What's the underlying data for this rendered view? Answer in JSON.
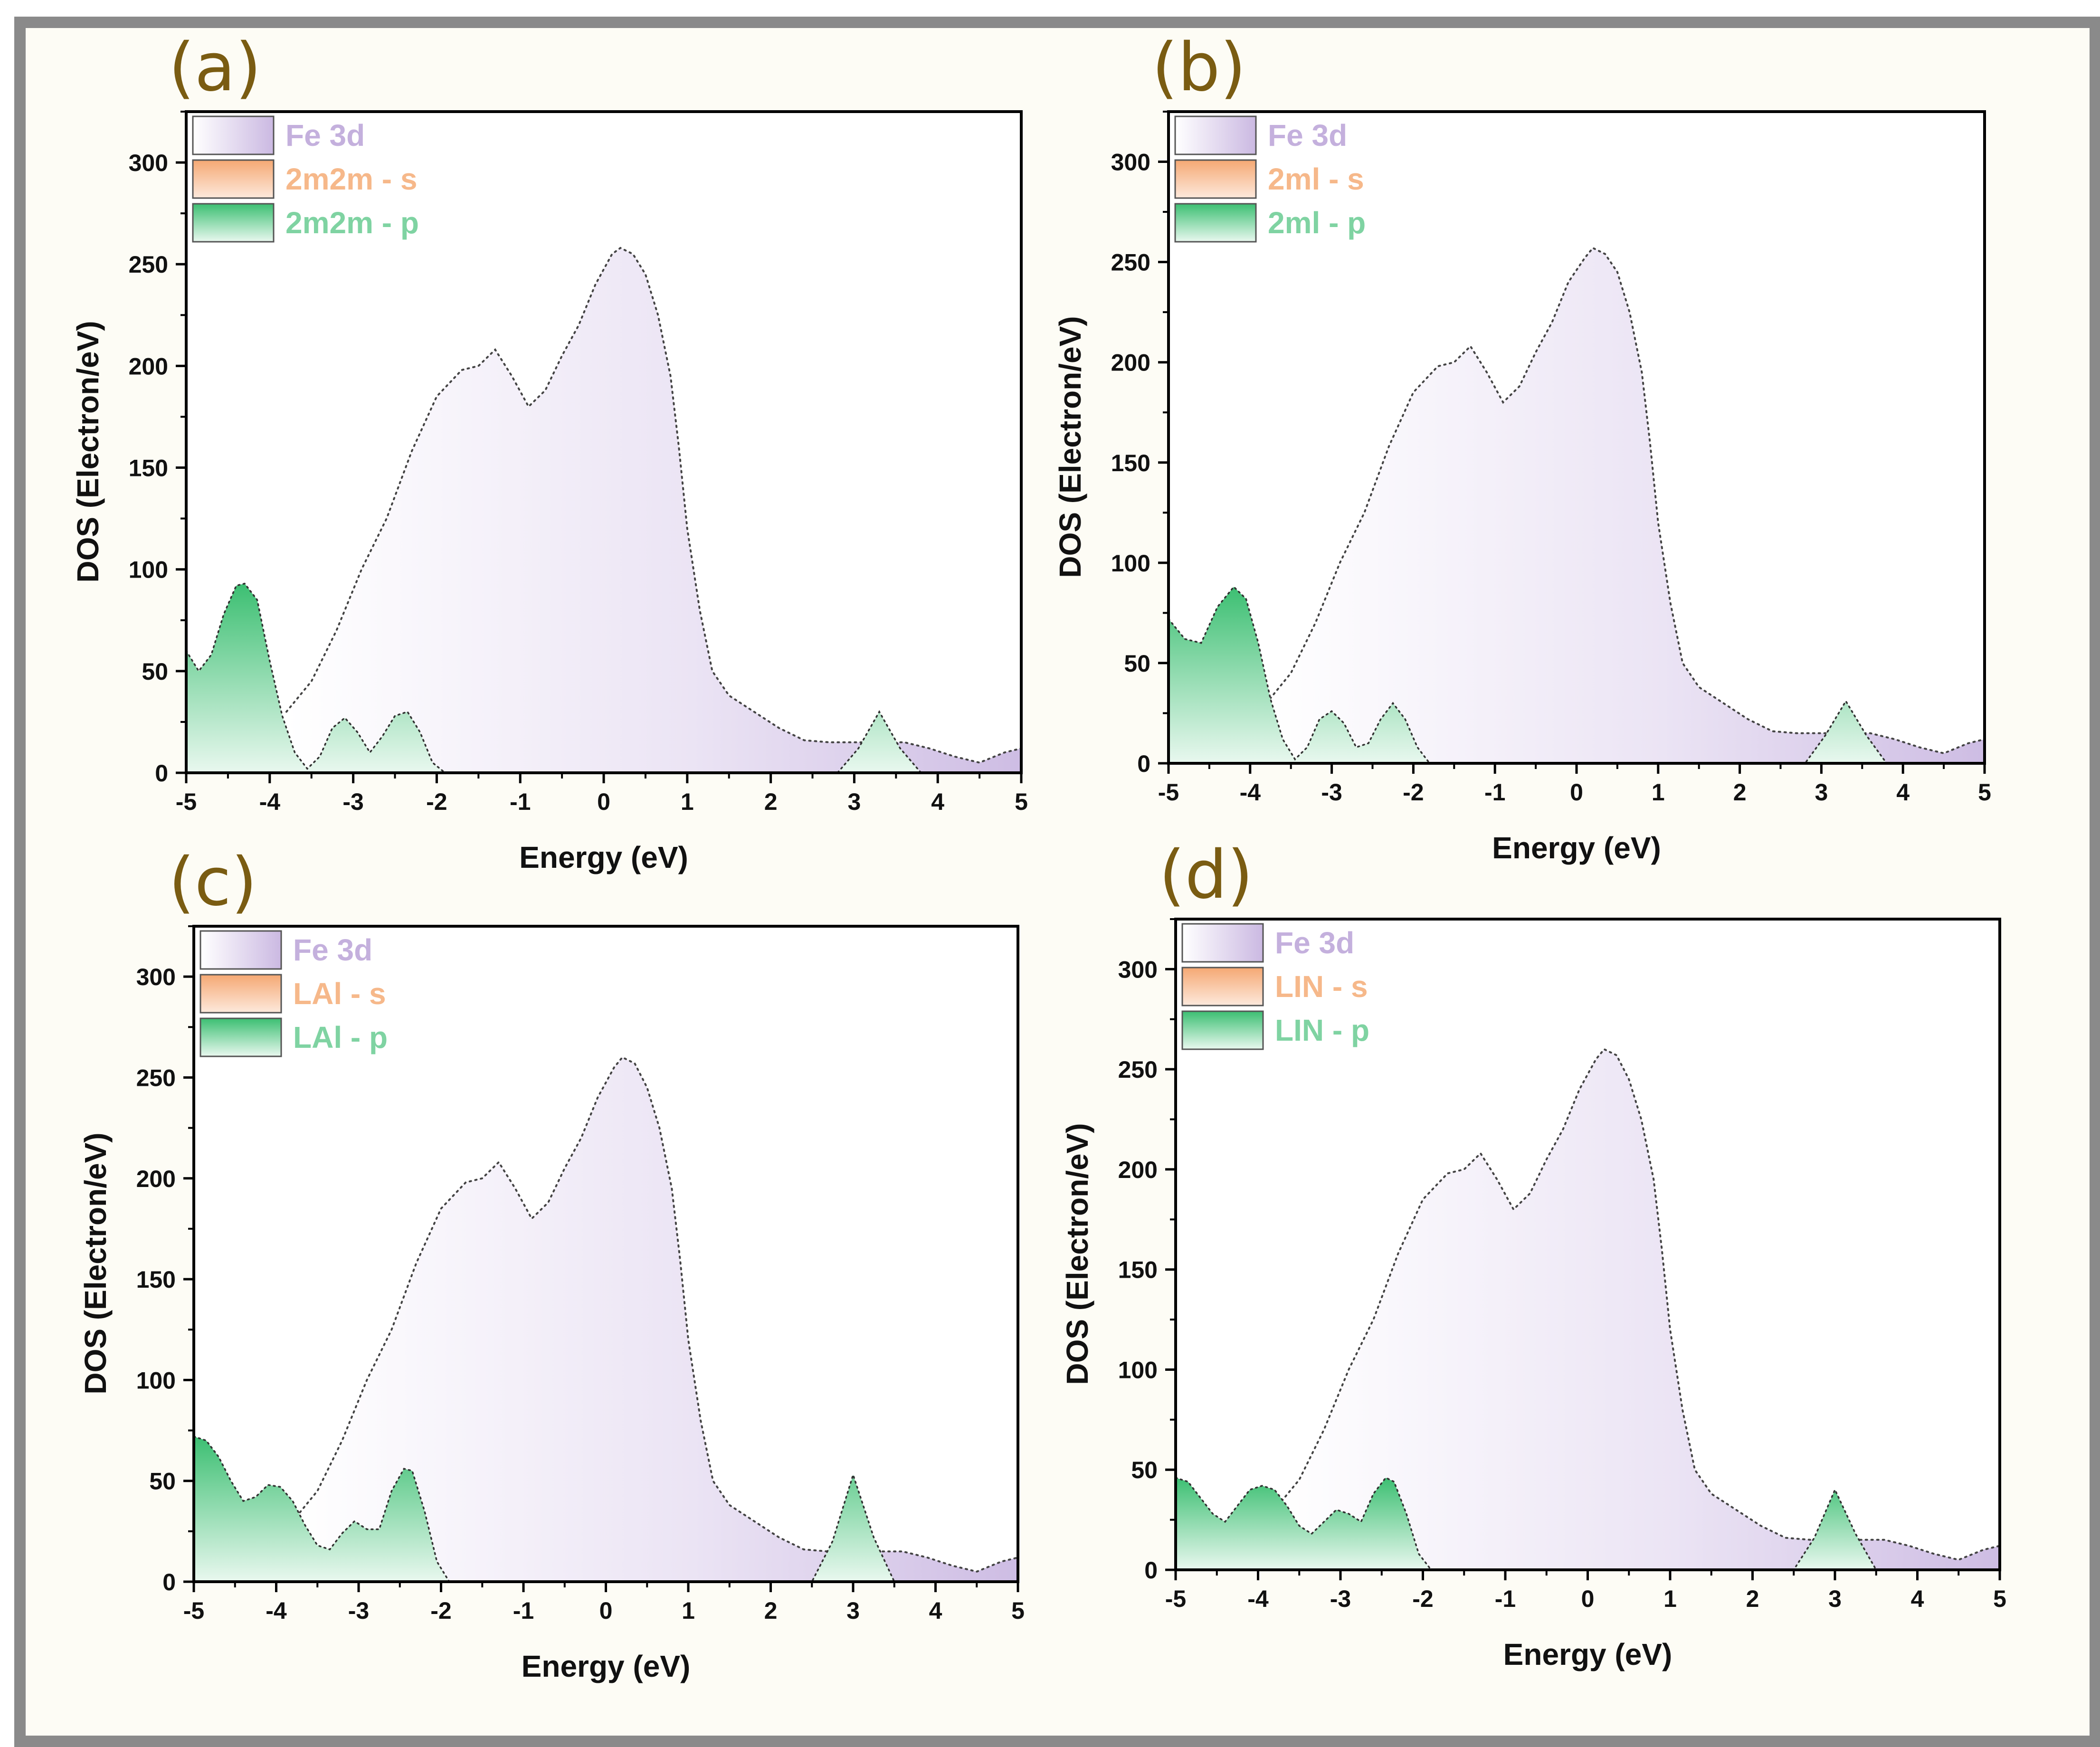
{
  "colors": {
    "fe3d": "#c5b3de",
    "s": "#f7b98a",
    "p": "#49c57c",
    "legend_fe": "#c4b0dd",
    "legend_s": "#f6b88a",
    "legend_p": "#7fd3a2",
    "panel_label": "#7a5c12"
  },
  "chart_data": [
    {
      "panel": "(a)",
      "type": "area",
      "xlabel": "Energy (eV)",
      "ylabel": "DOS (Electron/eV)",
      "xlim": [
        -5,
        5
      ],
      "ylim": [
        0,
        325
      ],
      "xticks": [
        -5,
        -4,
        -3,
        -2,
        -1,
        0,
        1,
        2,
        3,
        4,
        5
      ],
      "yticks": [
        0,
        50,
        100,
        150,
        200,
        250,
        300
      ],
      "legend": [
        "Fe 3d",
        "2m2m - s",
        "2m2m - p"
      ],
      "series": [
        {
          "name": "Fe 3d",
          "x": [
            -3.8,
            -3.5,
            -3.2,
            -2.9,
            -2.6,
            -2.3,
            -2.0,
            -1.7,
            -1.5,
            -1.3,
            -1.1,
            -0.9,
            -0.7,
            -0.5,
            -0.3,
            -0.1,
            0.1,
            0.2,
            0.35,
            0.5,
            0.65,
            0.8,
            0.9,
            1.0,
            1.15,
            1.3,
            1.5,
            1.8,
            2.1,
            2.4,
            2.7,
            3.0,
            3.3,
            3.6,
            3.9,
            4.2,
            4.5,
            4.8,
            5.0
          ],
          "y": [
            30,
            45,
            70,
            100,
            125,
            158,
            185,
            198,
            200,
            208,
            195,
            180,
            188,
            205,
            220,
            240,
            255,
            258,
            255,
            245,
            225,
            195,
            160,
            120,
            80,
            50,
            38,
            30,
            22,
            16,
            15,
            15,
            15,
            15,
            12,
            8,
            5,
            10,
            12
          ]
        },
        {
          "name": "2m2m - s",
          "x": [
            -5,
            5
          ],
          "y": [
            0,
            0
          ]
        },
        {
          "name": "2m2m - p",
          "x": [
            -5,
            -4.85,
            -4.7,
            -4.55,
            -4.4,
            -4.3,
            -4.15,
            -4.0,
            -3.85,
            -3.7,
            -3.55,
            -3.4,
            -3.25,
            -3.1,
            -2.95,
            -2.8,
            -2.65,
            -2.5,
            -2.35,
            -2.2,
            -2.05,
            -1.9,
            2.8,
            3.05,
            3.3,
            3.55,
            3.8
          ],
          "y": [
            60,
            50,
            58,
            78,
            92,
            93,
            85,
            55,
            28,
            10,
            2,
            8,
            22,
            27,
            20,
            10,
            18,
            28,
            30,
            20,
            5,
            0,
            0,
            12,
            30,
            12,
            0
          ]
        }
      ]
    },
    {
      "panel": "(b)",
      "type": "area",
      "xlabel": "Energy (eV)",
      "ylabel": "DOS (Electron/eV)",
      "xlim": [
        -5,
        5
      ],
      "ylim": [
        0,
        325
      ],
      "xticks": [
        -5,
        -4,
        -3,
        -2,
        -1,
        0,
        1,
        2,
        3,
        4,
        5
      ],
      "yticks": [
        0,
        50,
        100,
        150,
        200,
        250,
        300
      ],
      "legend": [
        "Fe 3d",
        "2ml - s",
        "2ml - p"
      ],
      "series": [
        {
          "name": "Fe 3d",
          "x": [
            -3.8,
            -3.5,
            -3.2,
            -2.9,
            -2.6,
            -2.3,
            -2.0,
            -1.7,
            -1.5,
            -1.3,
            -1.1,
            -0.9,
            -0.7,
            -0.5,
            -0.3,
            -0.1,
            0.1,
            0.2,
            0.35,
            0.5,
            0.65,
            0.8,
            0.9,
            1.0,
            1.15,
            1.3,
            1.5,
            1.8,
            2.1,
            2.4,
            2.7,
            3.0,
            3.3,
            3.6,
            3.9,
            4.2,
            4.5,
            4.8,
            5.0
          ],
          "y": [
            30,
            45,
            70,
            100,
            125,
            158,
            185,
            198,
            200,
            208,
            195,
            180,
            188,
            205,
            220,
            240,
            252,
            257,
            254,
            245,
            225,
            195,
            160,
            120,
            80,
            50,
            38,
            30,
            22,
            16,
            15,
            15,
            15,
            15,
            12,
            8,
            5,
            10,
            12
          ]
        },
        {
          "name": "2ml - s",
          "x": [
            -5,
            5
          ],
          "y": [
            0,
            0
          ]
        },
        {
          "name": "2ml - p",
          "x": [
            -5,
            -4.8,
            -4.6,
            -4.4,
            -4.2,
            -4.05,
            -3.9,
            -3.75,
            -3.6,
            -3.45,
            -3.3,
            -3.15,
            -3.0,
            -2.85,
            -2.7,
            -2.55,
            -2.4,
            -2.25,
            -2.1,
            -1.95,
            -1.8,
            2.8,
            3.05,
            3.3,
            3.55,
            3.8
          ],
          "y": [
            72,
            62,
            60,
            78,
            88,
            82,
            60,
            32,
            12,
            2,
            8,
            22,
            26,
            20,
            8,
            10,
            22,
            30,
            22,
            8,
            0,
            0,
            14,
            31,
            14,
            0
          ]
        }
      ]
    },
    {
      "panel": "(c)",
      "type": "area",
      "xlabel": "Energy (eV)",
      "ylabel": "DOS (Electron/eV)",
      "xlim": [
        -5,
        5
      ],
      "ylim": [
        0,
        325
      ],
      "xticks": [
        -5,
        -4,
        -3,
        -2,
        -1,
        0,
        1,
        2,
        3,
        4,
        5
      ],
      "yticks": [
        0,
        50,
        100,
        150,
        200,
        250,
        300
      ],
      "legend": [
        "Fe 3d",
        "LAl - s",
        "LAl - p"
      ],
      "series": [
        {
          "name": "Fe 3d",
          "x": [
            -3.8,
            -3.5,
            -3.2,
            -2.9,
            -2.6,
            -2.3,
            -2.0,
            -1.7,
            -1.5,
            -1.3,
            -1.1,
            -0.9,
            -0.7,
            -0.5,
            -0.3,
            -0.1,
            0.1,
            0.2,
            0.35,
            0.5,
            0.65,
            0.8,
            0.9,
            1.0,
            1.15,
            1.3,
            1.5,
            1.8,
            2.1,
            2.4,
            2.7,
            3.0,
            3.3,
            3.6,
            3.9,
            4.2,
            4.5,
            4.8,
            5.0
          ],
          "y": [
            30,
            45,
            70,
            100,
            125,
            158,
            185,
            198,
            200,
            208,
            195,
            180,
            188,
            205,
            220,
            240,
            255,
            260,
            257,
            245,
            225,
            195,
            160,
            120,
            80,
            50,
            38,
            30,
            22,
            16,
            15,
            15,
            15,
            15,
            12,
            8,
            5,
            10,
            12
          ]
        },
        {
          "name": "LAl - s",
          "x": [
            -5,
            5
          ],
          "y": [
            0,
            0
          ]
        },
        {
          "name": "LAl - p",
          "x": [
            -5,
            -4.85,
            -4.7,
            -4.55,
            -4.4,
            -4.25,
            -4.1,
            -3.95,
            -3.8,
            -3.65,
            -3.5,
            -3.35,
            -3.2,
            -3.05,
            -2.9,
            -2.75,
            -2.6,
            -2.45,
            -2.35,
            -2.2,
            -2.05,
            -1.9,
            2.5,
            2.75,
            3.0,
            3.25,
            3.5
          ],
          "y": [
            72,
            70,
            62,
            50,
            40,
            42,
            48,
            47,
            40,
            28,
            18,
            16,
            24,
            30,
            26,
            26,
            45,
            56,
            55,
            35,
            10,
            0,
            0,
            20,
            53,
            22,
            0
          ]
        }
      ]
    },
    {
      "panel": "(d)",
      "type": "area",
      "xlabel": "Energy (eV)",
      "ylabel": "DOS (Electron/eV)",
      "xlim": [
        -5,
        5
      ],
      "ylim": [
        0,
        325
      ],
      "xticks": [
        -5,
        -4,
        -3,
        -2,
        -1,
        0,
        1,
        2,
        3,
        4,
        5
      ],
      "yticks": [
        0,
        50,
        100,
        150,
        200,
        250,
        300
      ],
      "legend": [
        "Fe 3d",
        "LIN - s",
        "LIN - p"
      ],
      "series": [
        {
          "name": "Fe 3d",
          "x": [
            -3.8,
            -3.5,
            -3.2,
            -2.9,
            -2.6,
            -2.3,
            -2.0,
            -1.7,
            -1.5,
            -1.3,
            -1.1,
            -0.9,
            -0.7,
            -0.5,
            -0.3,
            -0.1,
            0.1,
            0.2,
            0.35,
            0.5,
            0.65,
            0.8,
            0.9,
            1.0,
            1.15,
            1.3,
            1.5,
            1.8,
            2.1,
            2.4,
            2.7,
            3.0,
            3.3,
            3.6,
            3.9,
            4.2,
            4.5,
            4.8,
            5.0
          ],
          "y": [
            30,
            45,
            70,
            100,
            125,
            158,
            185,
            198,
            200,
            208,
            195,
            180,
            188,
            205,
            220,
            240,
            255,
            260,
            257,
            245,
            225,
            195,
            160,
            120,
            80,
            50,
            38,
            30,
            22,
            16,
            15,
            15,
            15,
            15,
            12,
            8,
            5,
            10,
            12
          ]
        },
        {
          "name": "LIN - s",
          "x": [
            -5,
            5
          ],
          "y": [
            0,
            0
          ]
        },
        {
          "name": "LIN - p",
          "x": [
            -5,
            -4.85,
            -4.7,
            -4.55,
            -4.4,
            -4.25,
            -4.1,
            -3.95,
            -3.8,
            -3.65,
            -3.5,
            -3.35,
            -3.2,
            -3.05,
            -2.9,
            -2.75,
            -2.6,
            -2.45,
            -2.35,
            -2.2,
            -2.05,
            -1.9,
            2.5,
            2.75,
            3.0,
            3.25,
            3.5
          ],
          "y": [
            46,
            44,
            36,
            28,
            24,
            32,
            40,
            42,
            40,
            32,
            22,
            18,
            24,
            30,
            28,
            24,
            38,
            46,
            44,
            28,
            8,
            0,
            0,
            16,
            40,
            18,
            0
          ]
        }
      ]
    }
  ]
}
